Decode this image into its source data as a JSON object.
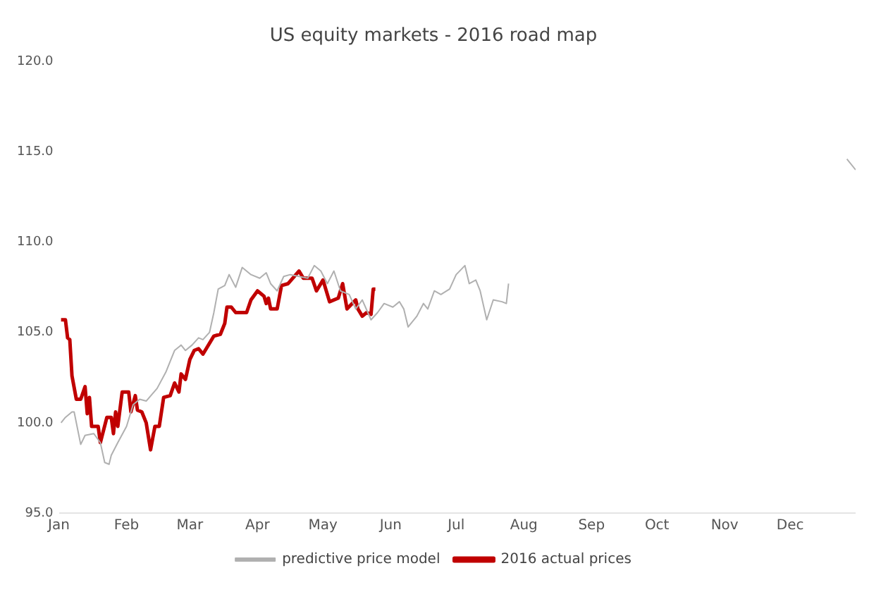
{
  "chart_data": {
    "type": "line",
    "title": "US equity markets - 2016 road map",
    "legend": "bottom",
    "marker": "none",
    "line_style": "solid",
    "grid": false,
    "xlim": [
      "2016-01-01",
      "2016-12-31"
    ],
    "xticks": [
      {
        "value": "2016-01-01",
        "label": "Jan"
      },
      {
        "value": "2016-02-01",
        "label": "Feb"
      },
      {
        "value": "2016-03-01",
        "label": "Mar"
      },
      {
        "value": "2016-04-01",
        "label": "Apr"
      },
      {
        "value": "2016-05-01",
        "label": "May"
      },
      {
        "value": "2016-06-01",
        "label": "Jun"
      },
      {
        "value": "2016-07-01",
        "label": "Jul"
      },
      {
        "value": "2016-08-01",
        "label": "Aug"
      },
      {
        "value": "2016-09-01",
        "label": "Sep"
      },
      {
        "value": "2016-10-01",
        "label": "Oct"
      },
      {
        "value": "2016-11-01",
        "label": "Nov"
      },
      {
        "value": "2016-12-01",
        "label": "Dec"
      }
    ],
    "ylim": [
      95,
      120
    ],
    "yticks": [
      {
        "value": 95,
        "label": "95.0"
      },
      {
        "value": 100,
        "label": "100.0"
      },
      {
        "value": 105,
        "label": "105.0"
      },
      {
        "value": 110,
        "label": "110.0"
      },
      {
        "value": 115,
        "label": "115.0"
      },
      {
        "value": 120,
        "label": "120.0"
      }
    ],
    "series": [
      {
        "name": "predictive price model",
        "color": "#b0b0b0",
        "x": [
          "2016-01-02",
          "2016-01-04",
          "2016-01-07",
          "2016-01-08",
          "2016-01-11",
          "2016-01-13",
          "2016-01-17",
          "2016-01-20",
          "2016-01-22",
          "2016-01-24",
          "2016-01-25",
          "2016-01-28",
          "2016-02-01",
          "2016-02-04",
          "2016-02-07",
          "2016-02-10",
          "2016-02-15",
          "2016-02-19",
          "2016-02-23",
          "2016-02-26",
          "2016-02-28",
          "2016-03-02",
          "2016-03-05",
          "2016-03-07",
          "2016-03-10",
          "2016-03-12",
          "2016-03-14",
          "2016-03-17",
          "2016-03-19",
          "2016-03-22",
          "2016-03-25",
          "2016-03-29",
          "2016-04-02",
          "2016-04-05",
          "2016-04-07",
          "2016-04-10",
          "2016-04-13",
          "2016-04-16",
          "2016-04-20",
          "2016-04-24",
          "2016-04-27",
          "2016-04-30",
          "2016-05-03",
          "2016-05-06",
          "2016-05-09",
          "2016-05-13",
          "2016-05-16",
          "2016-05-19",
          "2016-05-23",
          "2016-05-26",
          "2016-05-29",
          "2016-06-02",
          "2016-06-05",
          "2016-06-07",
          "2016-06-09",
          "2016-06-13",
          "2016-06-16",
          "2016-06-18",
          "2016-06-21",
          "2016-06-24",
          "2016-06-28",
          "2016-07-01",
          "2016-07-05",
          "2016-07-07",
          "2016-07-10",
          "2016-07-12",
          "2016-07-15",
          "2016-07-18",
          "2016-07-22",
          "2016-07-24",
          "2016-07-25",
          "2016-10-01",
          "2016-12-27",
          "2016-12-31"
        ],
        "values": [
          100.0,
          100.3,
          100.6,
          100.6,
          98.8,
          99.3,
          99.4,
          98.9,
          97.8,
          97.7,
          98.2,
          98.9,
          99.8,
          101.0,
          101.3,
          101.2,
          101.9,
          102.8,
          104.0,
          104.3,
          104.0,
          104.3,
          104.7,
          104.6,
          105.0,
          106.1,
          107.4,
          107.6,
          108.2,
          107.5,
          108.6,
          108.2,
          108.0,
          108.3,
          107.7,
          107.3,
          108.1,
          108.2,
          108.1,
          108.0,
          108.7,
          108.4,
          107.7,
          108.4,
          107.3,
          107.1,
          106.3,
          106.8,
          105.7,
          106.1,
          106.6,
          106.4,
          106.7,
          106.3,
          105.3,
          105.9,
          106.6,
          106.3,
          107.3,
          107.1,
          107.4,
          108.2,
          108.7,
          107.7,
          107.9,
          107.3,
          105.7,
          106.8,
          106.7,
          106.6,
          107.7,
          null,
          114.6,
          114.0
        ]
      },
      {
        "name": "2016 actual prices",
        "color": "#c00000",
        "x": [
          "2016-01-02",
          "2016-01-04",
          "2016-01-05",
          "2016-01-06",
          "2016-01-07",
          "2016-01-09",
          "2016-01-11",
          "2016-01-13",
          "2016-01-14",
          "2016-01-15",
          "2016-01-16",
          "2016-01-19",
          "2016-01-20",
          "2016-01-23",
          "2016-01-25",
          "2016-01-26",
          "2016-01-27",
          "2016-01-28",
          "2016-01-30",
          "2016-02-02",
          "2016-02-03",
          "2016-02-05",
          "2016-02-06",
          "2016-02-08",
          "2016-02-10",
          "2016-02-12",
          "2016-02-14",
          "2016-02-16",
          "2016-02-18",
          "2016-02-21",
          "2016-02-23",
          "2016-02-25",
          "2016-02-26",
          "2016-02-28",
          "2016-03-01",
          "2016-03-03",
          "2016-03-05",
          "2016-03-07",
          "2016-03-09",
          "2016-03-12",
          "2016-03-15",
          "2016-03-17",
          "2016-03-18",
          "2016-03-20",
          "2016-03-22",
          "2016-03-27",
          "2016-03-29",
          "2016-04-01",
          "2016-04-04",
          "2016-04-05",
          "2016-04-06",
          "2016-04-07",
          "2016-04-10",
          "2016-04-12",
          "2016-04-15",
          "2016-04-20",
          "2016-04-22",
          "2016-04-26",
          "2016-04-28",
          "2016-05-01",
          "2016-05-04",
          "2016-05-08",
          "2016-05-10",
          "2016-05-12",
          "2016-05-16",
          "2016-05-17",
          "2016-05-19",
          "2016-05-21",
          "2016-05-23",
          "2016-05-24",
          "2016-05-25"
        ],
        "values": [
          105.7,
          105.7,
          104.7,
          104.6,
          102.6,
          101.3,
          101.3,
          102.0,
          100.5,
          101.4,
          99.8,
          99.8,
          98.9,
          100.3,
          100.3,
          99.4,
          100.6,
          99.8,
          101.7,
          101.7,
          100.6,
          101.5,
          100.7,
          100.6,
          100.0,
          98.5,
          99.8,
          99.8,
          101.4,
          101.5,
          102.2,
          101.7,
          102.7,
          102.4,
          103.5,
          104.0,
          104.1,
          103.8,
          104.2,
          104.8,
          104.9,
          105.5,
          106.4,
          106.4,
          106.1,
          106.1,
          106.8,
          107.3,
          107.0,
          106.6,
          106.9,
          106.3,
          106.3,
          107.6,
          107.7,
          108.4,
          108.0,
          108.0,
          107.3,
          107.9,
          106.7,
          106.9,
          107.7,
          106.3,
          106.8,
          106.3,
          105.9,
          106.1,
          106.0,
          107.4,
          107.4
        ]
      }
    ]
  }
}
